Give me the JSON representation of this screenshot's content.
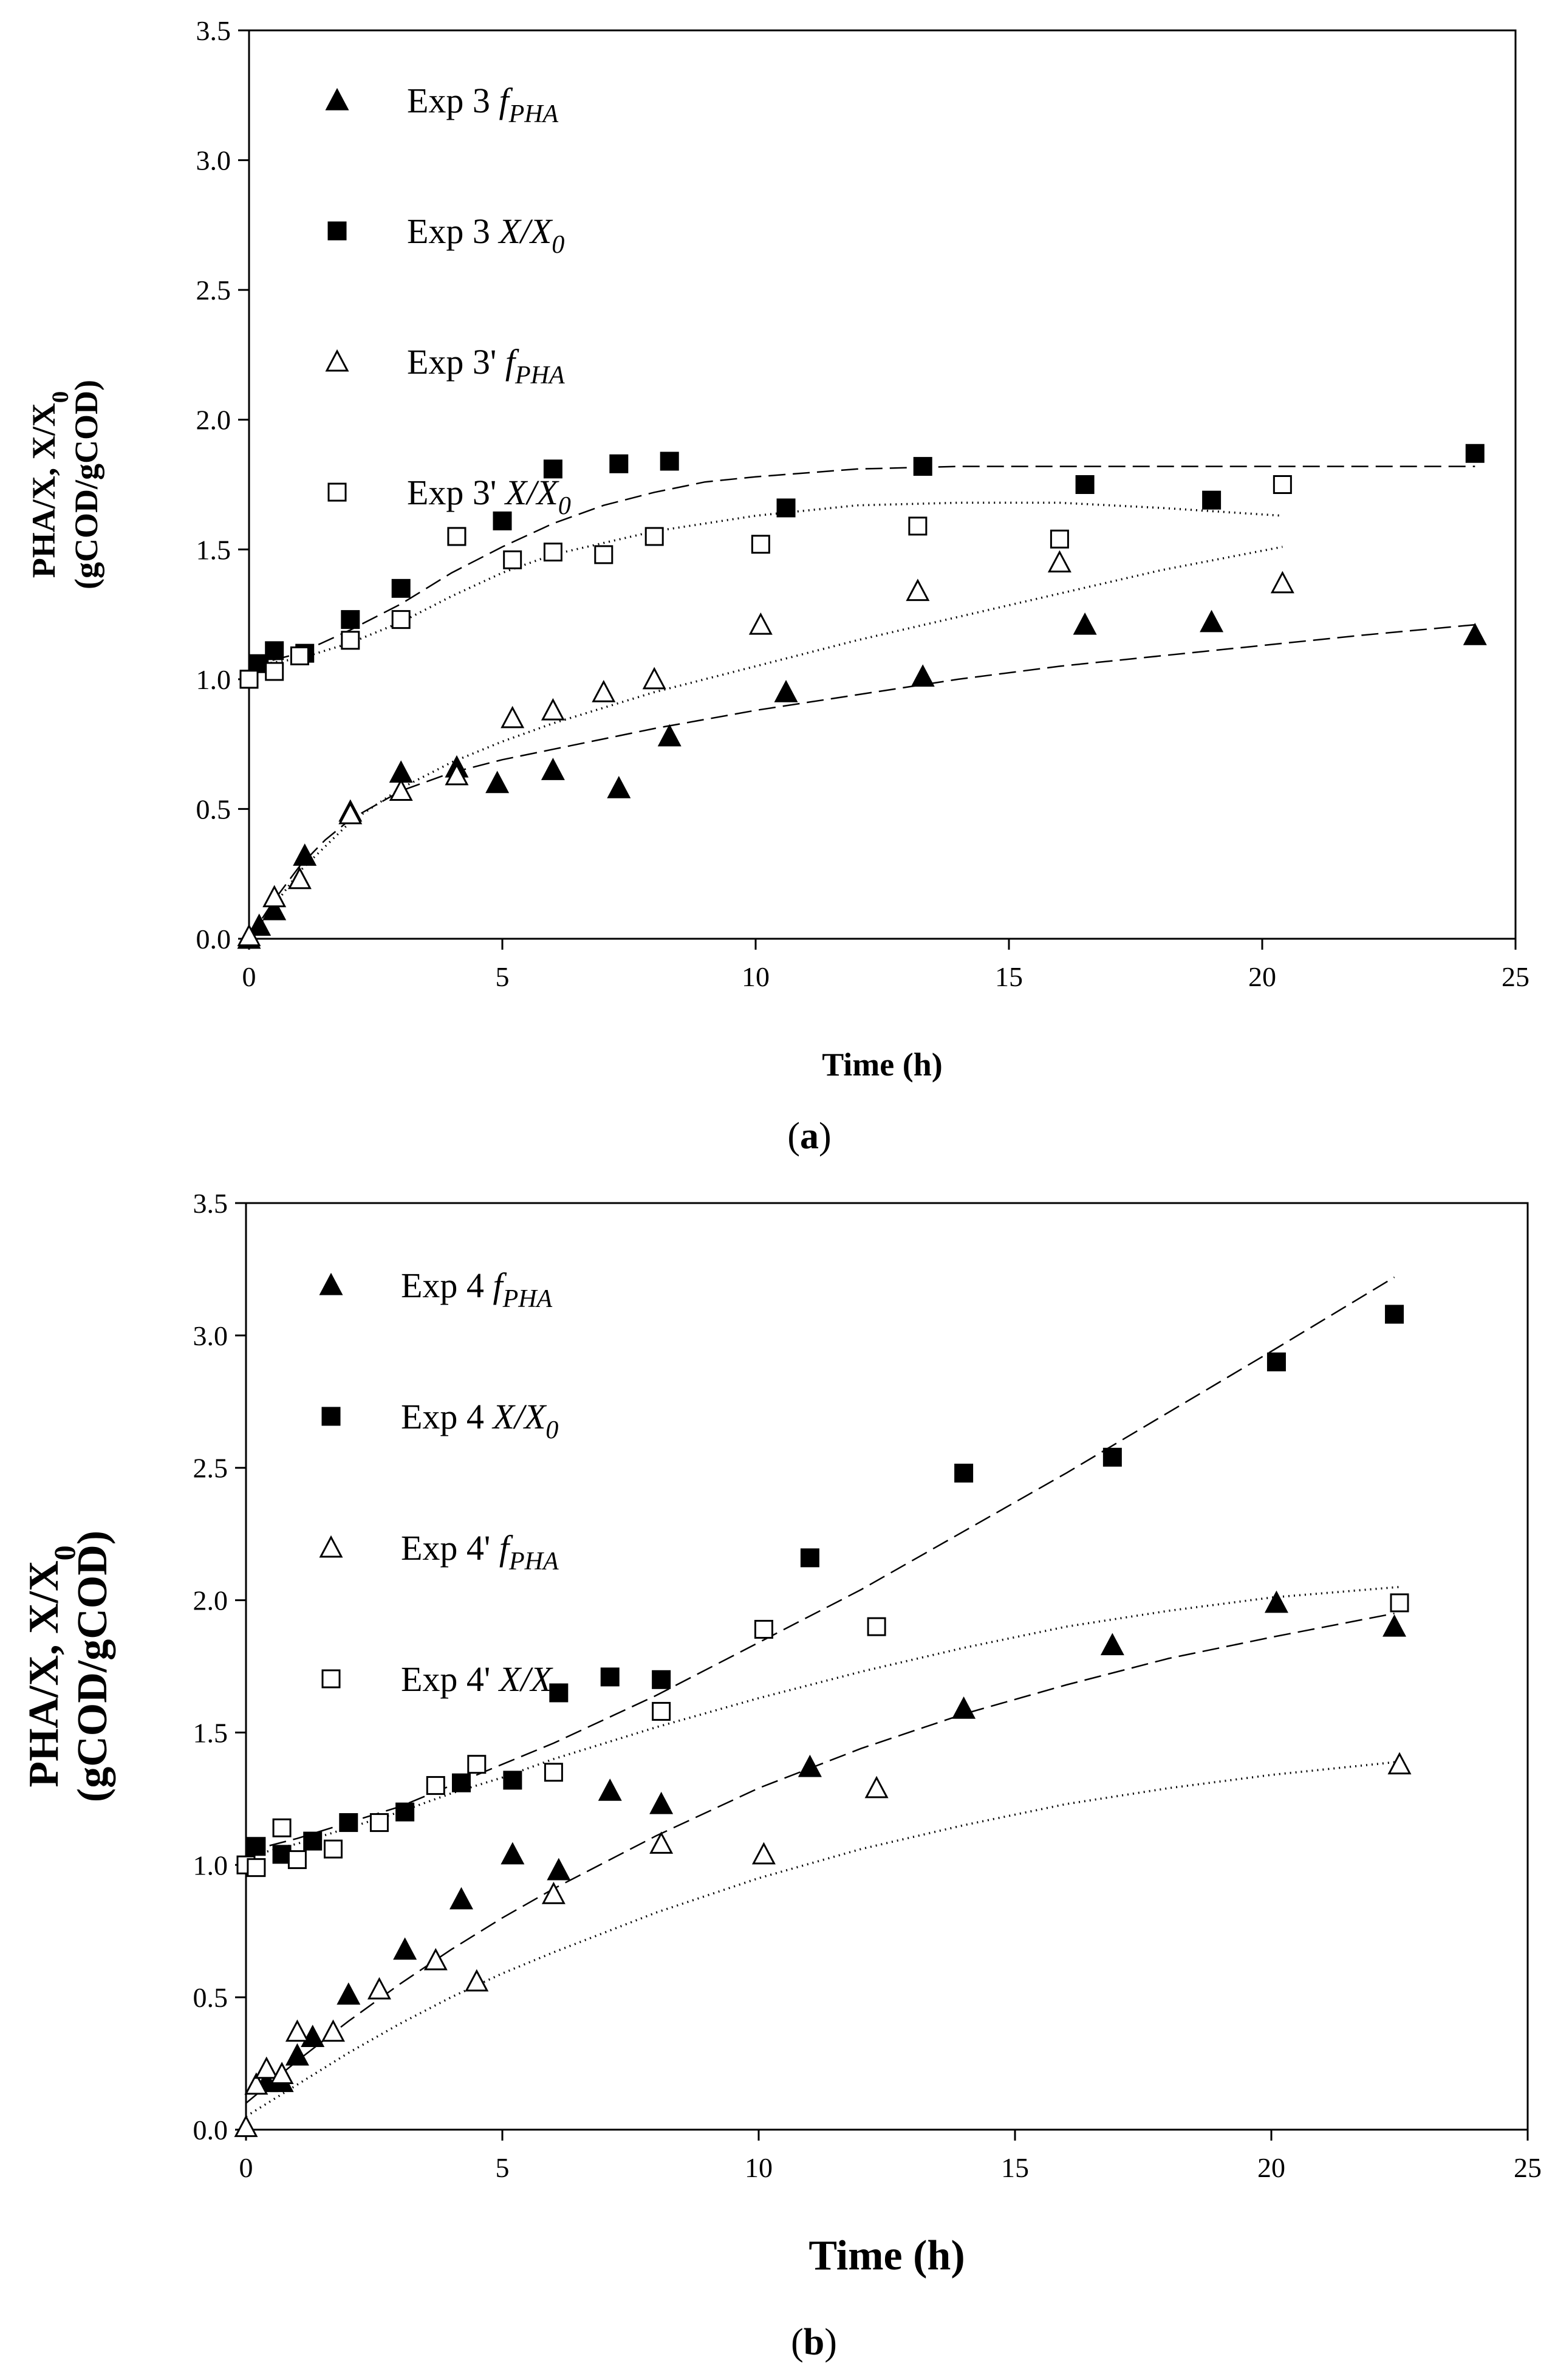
{
  "chart_data": [
    {
      "type": "scatter",
      "panel_label": "(a)",
      "label_bold": "a",
      "xlabel": "Time (h)",
      "ylabel_line1": "PHA/X,  X/X",
      "ylabel_sub": "0",
      "ylabel_line2": "(gCOD/gCOD)",
      "xlim": [
        0,
        25
      ],
      "ylim": [
        0,
        3.5
      ],
      "xticks": [
        "0",
        "5",
        "10",
        "15",
        "20",
        "25"
      ],
      "yticks": [
        "0.0",
        "0.5",
        "1.0",
        "1.5",
        "2.0",
        "2.5",
        "3.0",
        "3.5"
      ],
      "legend_position": "top-left",
      "series": [
        {
          "name": "Exp 3 fPHA",
          "legend_main": "Exp 3 ",
          "legend_var": "f",
          "legend_sub": "PHA",
          "marker": "triangle",
          "filled": true,
          "x": [
            0,
            0.2,
            0.5,
            1.1,
            2.0,
            3.0,
            4.1,
            4.9,
            6.0,
            7.3,
            8.3,
            10.6,
            13.3,
            16.5,
            19.0,
            24.2
          ],
          "y": [
            0.0,
            0.05,
            0.11,
            0.32,
            0.49,
            0.64,
            0.66,
            0.6,
            0.65,
            0.58,
            0.78,
            0.95,
            1.01,
            1.21,
            1.22,
            1.17
          ],
          "fit": {
            "style": "dashed",
            "x": [
              0,
              0.5,
              1,
              1.5,
              2,
              3,
              4,
              5,
              6,
              7,
              8,
              10,
              12,
              14,
              16,
              18,
              20,
              22,
              24.2
            ],
            "y": [
              0,
              0.15,
              0.28,
              0.38,
              0.46,
              0.57,
              0.64,
              0.69,
              0.73,
              0.77,
              0.81,
              0.88,
              0.94,
              1.0,
              1.05,
              1.09,
              1.13,
              1.17,
              1.21
            ]
          }
        },
        {
          "name": "Exp 3 X/X0",
          "legend_main": "Exp 3 ",
          "legend_var": "X/X",
          "legend_sub": "0",
          "marker": "square",
          "filled": true,
          "x": [
            0,
            0.2,
            0.5,
            1.1,
            2.0,
            3.0,
            4.1,
            5.0,
            6.0,
            7.3,
            8.3,
            10.6,
            13.3,
            16.5,
            19.0,
            24.2
          ],
          "y": [
            1.0,
            1.06,
            1.11,
            1.1,
            1.23,
            1.35,
            1.55,
            1.61,
            1.81,
            1.83,
            1.84,
            1.66,
            1.82,
            1.75,
            1.69,
            1.87
          ],
          "fit": {
            "style": "dashed",
            "x": [
              0,
              1,
              2,
              3,
              4,
              5,
              6,
              7,
              8,
              9,
              10,
              12,
              14,
              16,
              18,
              20,
              22,
              24.2
            ],
            "y": [
              1.05,
              1.1,
              1.19,
              1.29,
              1.41,
              1.51,
              1.6,
              1.67,
              1.72,
              1.76,
              1.78,
              1.81,
              1.82,
              1.82,
              1.82,
              1.82,
              1.82,
              1.82
            ]
          }
        },
        {
          "name": "Exp 3' fPHA",
          "legend_main": "Exp 3' ",
          "legend_var": "f",
          "legend_sub": "PHA",
          "marker": "triangle",
          "filled": false,
          "x": [
            0,
            0.5,
            1.0,
            2.0,
            3.0,
            4.1,
            5.2,
            6.0,
            7.0,
            8.0,
            10.1,
            13.2,
            16.0,
            20.4
          ],
          "y": [
            0.01,
            0.16,
            0.23,
            0.48,
            0.57,
            0.63,
            0.85,
            0.88,
            0.95,
            1.0,
            1.21,
            1.34,
            1.45,
            1.37
          ],
          "fit": {
            "style": "dotted",
            "x": [
              0,
              1,
              2,
              3,
              4,
              5,
              6,
              7,
              8,
              10,
              12,
              14,
              16,
              18,
              20.4
            ],
            "y": [
              0,
              0.26,
              0.45,
              0.58,
              0.68,
              0.76,
              0.83,
              0.89,
              0.95,
              1.05,
              1.15,
              1.24,
              1.33,
              1.42,
              1.51
            ]
          }
        },
        {
          "name": "Exp 3' X/X0",
          "legend_main": "Exp 3' ",
          "legend_var": "X/X",
          "legend_sub": "0",
          "marker": "square",
          "filled": false,
          "x": [
            0,
            0.5,
            1.0,
            2.0,
            3.0,
            4.1,
            5.2,
            6.0,
            7.0,
            8.0,
            10.1,
            13.2,
            16.0,
            20.4
          ],
          "y": [
            1.0,
            1.03,
            1.09,
            1.15,
            1.23,
            1.55,
            1.46,
            1.49,
            1.48,
            1.55,
            1.52,
            1.59,
            1.54,
            1.75
          ],
          "fit": {
            "style": "dotted",
            "x": [
              0,
              1,
              2,
              3,
              4,
              5,
              6,
              8,
              10,
              12,
              14,
              16,
              18,
              20.4
            ],
            "y": [
              1.05,
              1.08,
              1.14,
              1.22,
              1.32,
              1.41,
              1.48,
              1.57,
              1.63,
              1.67,
              1.68,
              1.68,
              1.66,
              1.63
            ]
          }
        }
      ]
    },
    {
      "type": "scatter",
      "panel_label": "(b)",
      "label_bold": "b",
      "xlabel": "Time (h)",
      "ylabel_line1": "PHA/X,  X/X",
      "ylabel_sub": "0",
      "ylabel_line2": "(gCOD/gCOD)",
      "xlim": [
        0,
        25
      ],
      "ylim": [
        0,
        3.5
      ],
      "xticks": [
        "0",
        "5",
        "10",
        "15",
        "20",
        "25"
      ],
      "yticks": [
        "0.0",
        "0.5",
        "1.0",
        "1.5",
        "2.0",
        "2.5",
        "3.0",
        "3.5"
      ],
      "legend_position": "top-left",
      "series": [
        {
          "name": "Exp 4 fPHA",
          "legend_main": "Exp 4 ",
          "legend_var": "f",
          "legend_sub": "PHA",
          "marker": "triangle",
          "filled": true,
          "x": [
            0.4,
            0.7,
            1.0,
            1.3,
            2.0,
            3.1,
            4.2,
            5.2,
            6.1,
            7.1,
            8.1,
            11.0,
            14.0,
            16.9,
            20.1,
            22.4
          ],
          "y": [
            0.18,
            0.18,
            0.28,
            0.35,
            0.51,
            0.68,
            0.87,
            1.04,
            0.98,
            1.28,
            1.23,
            1.37,
            1.59,
            1.83,
            1.99,
            1.9
          ],
          "fit": {
            "style": "dashed",
            "x": [
              0,
              1,
              2,
              3,
              4,
              5,
              6,
              8,
              10,
              12,
              14,
              16,
              18,
              20,
              22.4
            ],
            "y": [
              0.1,
              0.26,
              0.41,
              0.55,
              0.68,
              0.8,
              0.91,
              1.11,
              1.29,
              1.44,
              1.57,
              1.68,
              1.78,
              1.86,
              1.95
            ]
          }
        },
        {
          "name": "Exp 4 X/X0",
          "legend_main": "Exp 4 ",
          "legend_var": "X/X",
          "legend_sub": "0",
          "marker": "square",
          "filled": true,
          "x": [
            0.2,
            0.7,
            1.3,
            2.0,
            3.1,
            4.2,
            5.2,
            6.1,
            7.1,
            8.1,
            11.0,
            14.0,
            16.9,
            20.1,
            22.4
          ],
          "y": [
            1.07,
            1.04,
            1.09,
            1.16,
            1.2,
            1.31,
            1.32,
            1.65,
            1.71,
            1.7,
            2.16,
            2.48,
            2.54,
            2.9,
            3.08
          ],
          "fit": {
            "style": "dashed",
            "x": [
              0,
              1,
              2,
              3,
              4,
              5,
              6,
              8,
              10,
              12,
              14,
              16,
              18,
              20,
              22.4
            ],
            "y": [
              1.05,
              1.1,
              1.16,
              1.22,
              1.3,
              1.38,
              1.46,
              1.64,
              1.84,
              2.04,
              2.26,
              2.48,
              2.71,
              2.94,
              3.22
            ]
          }
        },
        {
          "name": "Exp 4' fPHA",
          "legend_main": "Exp 4' ",
          "legend_var": "f",
          "legend_sub": "PHA",
          "marker": "triangle",
          "filled": false,
          "x": [
            0,
            0.2,
            0.4,
            0.7,
            1.0,
            1.7,
            2.6,
            3.7,
            4.5,
            6.0,
            8.1,
            10.1,
            12.3,
            22.5
          ],
          "y": [
            0.01,
            0.17,
            0.23,
            0.21,
            0.37,
            0.37,
            0.53,
            0.64,
            0.56,
            0.89,
            1.08,
            1.04,
            1.29,
            1.38
          ],
          "fit": {
            "style": "dotted",
            "x": [
              0,
              1,
              2,
              3,
              4,
              5,
              6,
              8,
              10,
              12,
              14,
              16,
              18,
              20,
              22.5
            ],
            "y": [
              0.05,
              0.17,
              0.29,
              0.4,
              0.5,
              0.59,
              0.67,
              0.82,
              0.95,
              1.06,
              1.15,
              1.23,
              1.29,
              1.34,
              1.39
            ]
          }
        },
        {
          "name": "Exp 4' X/X0",
          "legend_main": "Exp 4' ",
          "legend_var": "X/X",
          "legend_sub": "0",
          "marker": "square",
          "filled": false,
          "x": [
            0,
            0.2,
            0.7,
            1.0,
            1.7,
            2.6,
            3.7,
            4.5,
            6.0,
            8.1,
            10.1,
            12.3,
            22.5
          ],
          "y": [
            1.0,
            0.99,
            1.14,
            1.02,
            1.06,
            1.16,
            1.3,
            1.38,
            1.35,
            1.58,
            1.89,
            1.9,
            1.99
          ],
          "fit": {
            "style": "dotted",
            "x": [
              0,
              1,
              2,
              3,
              4,
              5,
              6,
              8,
              10,
              12,
              14,
              16,
              18,
              20,
              22.5
            ],
            "y": [
              1.03,
              1.08,
              1.14,
              1.2,
              1.27,
              1.33,
              1.4,
              1.52,
              1.63,
              1.73,
              1.82,
              1.9,
              1.96,
              2.01,
              2.05
            ]
          }
        }
      ]
    }
  ]
}
